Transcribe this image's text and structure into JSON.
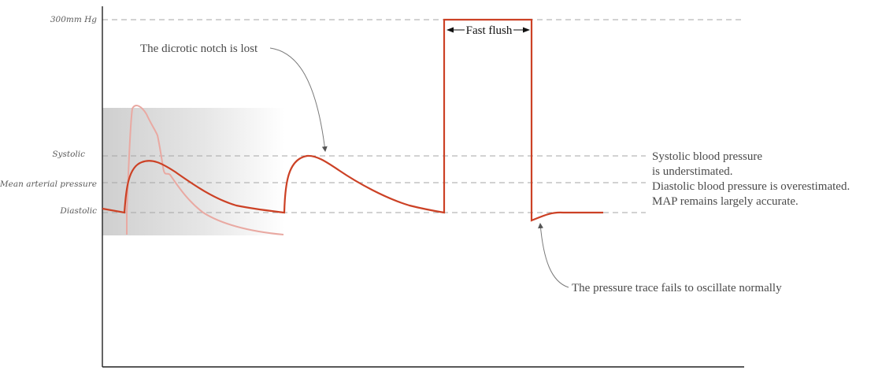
{
  "y_levels": {
    "top": "300mm Hg",
    "systolic": "Systolic",
    "map": "Mean arterial pressure",
    "diastolic": "Diastolic"
  },
  "annotations": {
    "dicrotic": "The dicrotic notch is lost",
    "fast_flush": "Fast flush",
    "bp_line1": "Systolic blood pressure",
    "bp_line2": "is understimated.",
    "bp_line3": "Diastolic blood pressure is overestimated.",
    "bp_line4": "MAP remains largely accurate.",
    "trace": "The pressure trace fails to oscillate normally"
  },
  "colors": {
    "trace": "#cc4125",
    "normal_trace": "#e9a9a2",
    "dashed": "#a6a6a6",
    "axis": "#222222",
    "arrow": "#7a7a7a"
  }
}
